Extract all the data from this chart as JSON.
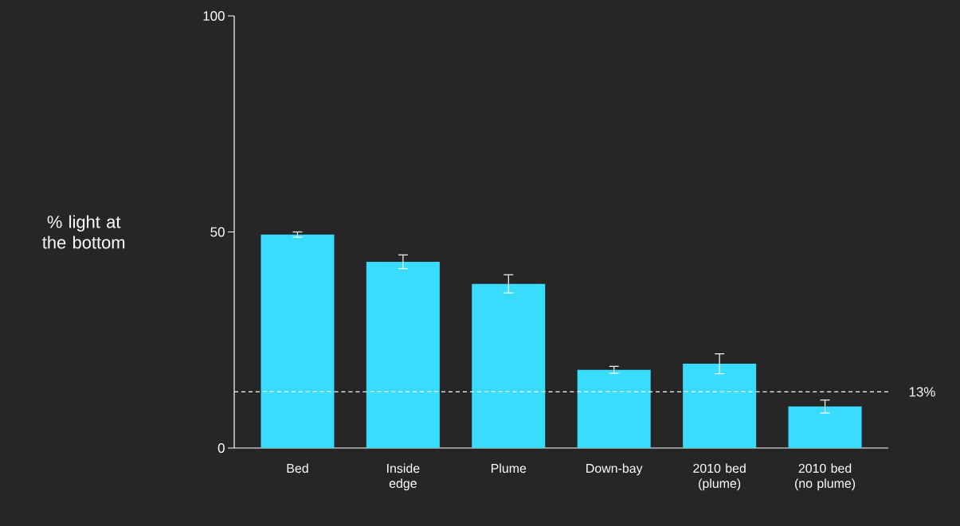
{
  "chart_data": {
    "type": "bar",
    "ylabel": "% light at the bottom",
    "categories": [
      "Bed",
      "Inside edge",
      "Plume",
      "Down-bay",
      "2010 bed (plume)",
      "2010 bed (no plume)"
    ],
    "values": [
      49.4,
      43.1,
      38.0,
      18.1,
      19.5,
      9.6
    ],
    "errors": [
      0.6,
      1.6,
      2.1,
      0.8,
      2.3,
      1.5
    ],
    "color": "#39dcff",
    "ylim": [
      0,
      100
    ],
    "yticks": [
      0,
      50,
      100
    ],
    "ref_lines": [
      {
        "axis": "y",
        "value": 13,
        "label": "13%",
        "color": "#ffffff",
        "line_style": "dashed"
      }
    ]
  }
}
